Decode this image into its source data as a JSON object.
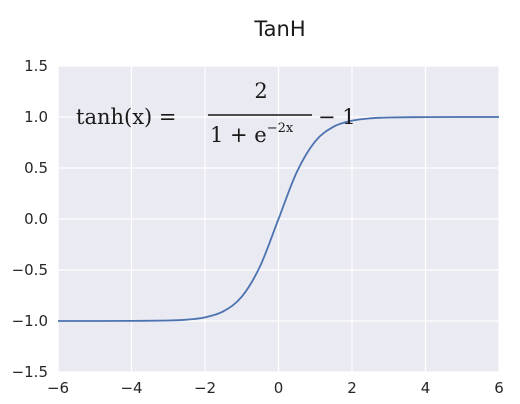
{
  "chart_data": {
    "type": "line",
    "title": "TanH",
    "xlabel": "",
    "ylabel": "",
    "xlim": [
      -6,
      6
    ],
    "ylim": [
      -1.5,
      1.5
    ],
    "xticks": [
      -6,
      -4,
      -2,
      0,
      2,
      4,
      6
    ],
    "yticks": [
      1.5,
      1.0,
      0.5,
      0.0,
      -0.5,
      -1.0,
      -1.5
    ],
    "xtick_labels": [
      "−6",
      "−4",
      "−2",
      "0",
      "2",
      "4",
      "6"
    ],
    "ytick_labels": [
      "1.5",
      "1.0",
      "0.5",
      "0.0",
      "−0.5",
      "−1.0",
      "−1.5"
    ],
    "grid": true,
    "series_color": "#4c72b0",
    "series": [
      {
        "x": [
          -6,
          -5,
          -4,
          -3,
          -2.5,
          -2,
          -1.5,
          -1,
          -0.5,
          0,
          0.5,
          1,
          1.5,
          2,
          2.5,
          3,
          4,
          5,
          6
        ],
        "values": [
          -1.0,
          -1.0,
          -0.999,
          -0.995,
          -0.987,
          -0.964,
          -0.905,
          -0.762,
          -0.462,
          0.0,
          0.462,
          0.762,
          0.905,
          0.964,
          0.987,
          0.995,
          0.999,
          1.0,
          1.0
        ]
      }
    ],
    "annotation": {
      "lhs": "tanh(x) =",
      "numerator": "2",
      "denominator_base": "1 + e",
      "denominator_exp": "−2x",
      "tail": "− 1"
    }
  }
}
